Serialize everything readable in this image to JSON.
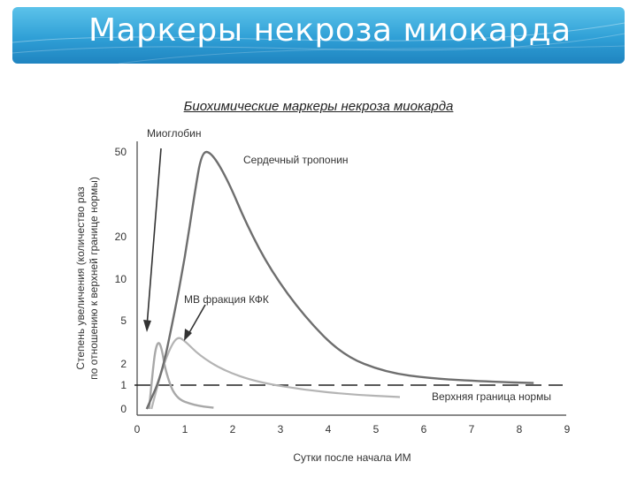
{
  "slide": {
    "title": "Маркеры некроза миокарда"
  },
  "chart_data": {
    "type": "line",
    "title": "Биохимические маркеры некроза миокарда",
    "xlabel": "Сутки после начала ИМ",
    "ylabel_line1": "Степень увеличения (количество раз",
    "ylabel_line2": "по отношению к верхней границе нормы)",
    "x_ticks": [
      "0",
      "1",
      "2",
      "3",
      "4",
      "5",
      "6",
      "7",
      "8",
      "9"
    ],
    "y_ticks": [
      {
        "label": "0",
        "value": 0
      },
      {
        "label": "1",
        "value": 1
      },
      {
        "label": "2",
        "value": 2
      },
      {
        "label": "5",
        "value": 5
      },
      {
        "label": "10",
        "value": 10
      },
      {
        "label": "20",
        "value": 20
      },
      {
        "label": "50",
        "value": 50
      }
    ],
    "reference_line": {
      "name": "Верхняя граница нормы",
      "value": 1
    },
    "series": [
      {
        "name": "Миоглобин",
        "points": [
          [
            0.25,
            0
          ],
          [
            0.32,
            1.5
          ],
          [
            0.38,
            3.0
          ],
          [
            0.45,
            3.6
          ],
          [
            0.52,
            3.0
          ],
          [
            0.6,
            1.6
          ],
          [
            0.8,
            0.45
          ],
          [
            1.2,
            0.15
          ],
          [
            1.6,
            0.05
          ]
        ]
      },
      {
        "name": "МВ фракция КФК",
        "points": [
          [
            0.3,
            0
          ],
          [
            0.5,
            1.6
          ],
          [
            0.7,
            3.2
          ],
          [
            0.85,
            3.9
          ],
          [
            1.0,
            3.6
          ],
          [
            1.3,
            2.6
          ],
          [
            1.8,
            1.7
          ],
          [
            2.5,
            1.15
          ],
          [
            3.5,
            0.8
          ],
          [
            4.5,
            0.6
          ],
          [
            5.5,
            0.5
          ]
        ]
      },
      {
        "name": "Сердечный тропонин",
        "points": [
          [
            0.2,
            0
          ],
          [
            0.5,
            1.4
          ],
          [
            0.75,
            5
          ],
          [
            1.0,
            15
          ],
          [
            1.2,
            35
          ],
          [
            1.35,
            50
          ],
          [
            1.55,
            50
          ],
          [
            1.9,
            40
          ],
          [
            2.3,
            24
          ],
          [
            2.8,
            12
          ],
          [
            3.5,
            5.5
          ],
          [
            4.3,
            2.6
          ],
          [
            5.2,
            1.6
          ],
          [
            6.2,
            1.3
          ],
          [
            7.5,
            1.15
          ],
          [
            8.3,
            1.1
          ]
        ]
      }
    ]
  }
}
